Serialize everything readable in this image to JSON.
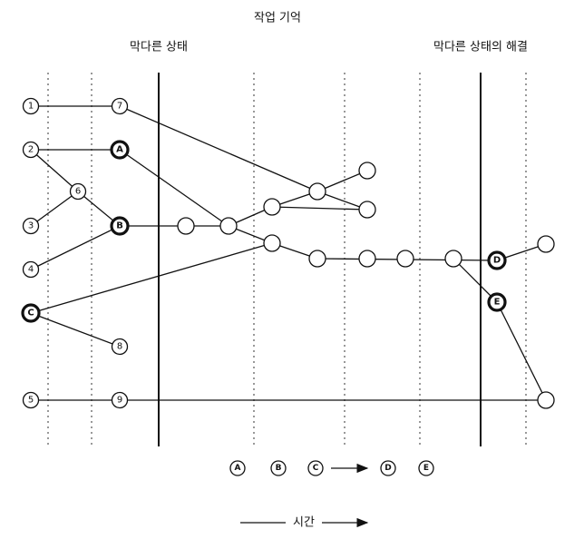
{
  "title": "작업 기억",
  "phases": [
    "막다른 상태",
    "막다른 상태의 해결"
  ],
  "nodes": [
    "1",
    "7",
    "2",
    "A",
    "6",
    "3",
    "B",
    "4",
    "C",
    "8",
    "5",
    "9",
    "D",
    "E"
  ],
  "sequence": [
    "A",
    "B",
    "C",
    "D",
    "E"
  ],
  "time_label": "시간"
}
